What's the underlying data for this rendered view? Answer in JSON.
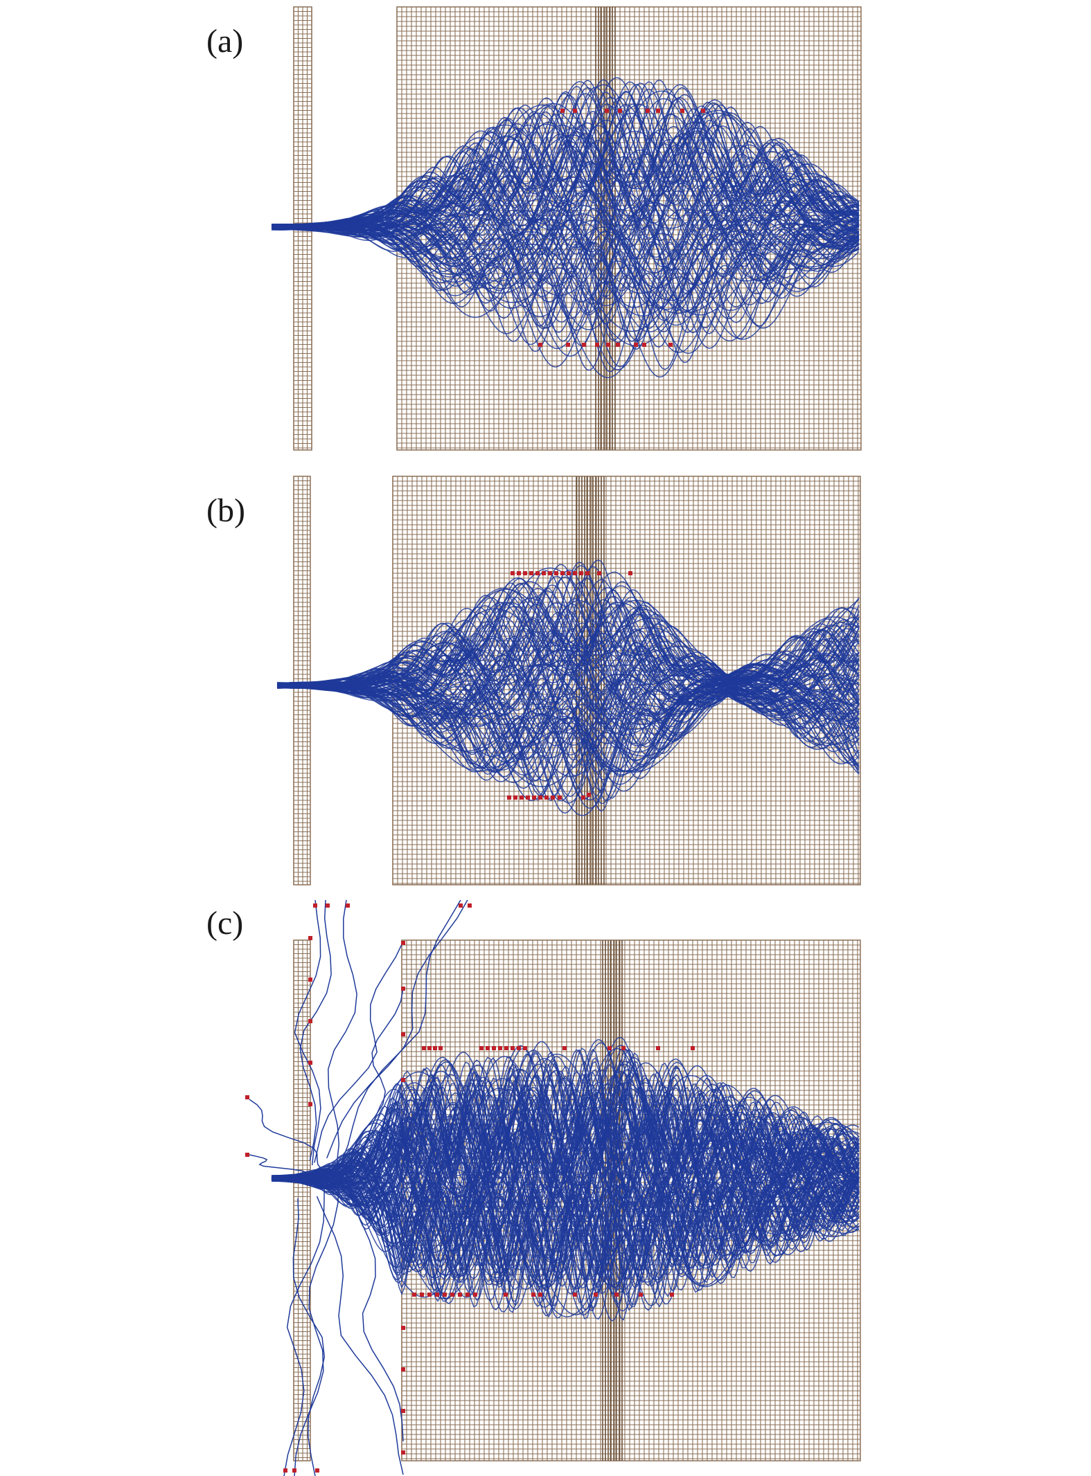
{
  "panels": [
    {
      "id": "a",
      "label": "(a)"
    },
    {
      "id": "b",
      "label": "(b)"
    },
    {
      "id": "c",
      "label": "(c)"
    }
  ],
  "colors": {
    "grid": "#8a6e55",
    "grid_dark": "#6b5038",
    "trajectory": "#1f3a9a",
    "endpoint": "#c0202a",
    "label": "#1a1a1a"
  }
}
